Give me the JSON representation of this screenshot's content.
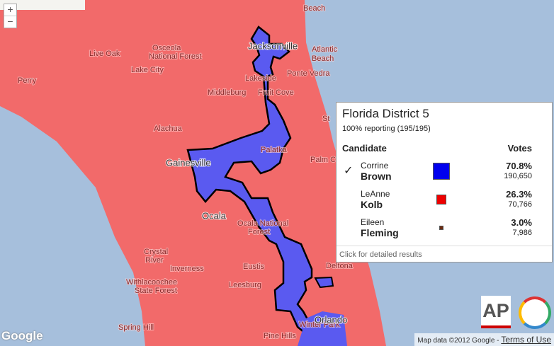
{
  "map": {
    "labels": [
      "Beach",
      "Atlantic",
      "Beach",
      "Jacksonville",
      "Live Oak",
      "Osceola",
      "National Forest",
      "Lake City",
      "Perry",
      "Ponte Vedra",
      "Lakeside",
      "Middleburg",
      "Fruit Cove",
      "St",
      "Alachua",
      "Palatka",
      "Gainesville",
      "Palm C",
      "Ocala",
      "Ocala National",
      "Forest",
      "Crystal",
      "River",
      "Inverness",
      "Withlacoochee",
      "State Forest",
      "Eustis",
      "Deltona",
      "Leesburg",
      "Winter Park",
      "Spring Hill",
      "Pine Hills",
      "Orlando"
    ],
    "zoom_in": "+",
    "zoom_out": "−",
    "logo": "Google",
    "attribution": "Map data ©2012 Google -",
    "terms": "Terms of Use",
    "ap": "AP"
  },
  "popup": {
    "title": "Florida District 5",
    "reporting": "100% reporting (195/195)",
    "candidate_header": "Candidate",
    "votes_header": "Votes",
    "candidates": [
      {
        "winner": "✓",
        "first": "Corrine",
        "last": "Brown",
        "percent": 70.8,
        "percent_label": "70.8%",
        "votes": 190650,
        "votes_label": "190,650",
        "color": "#0000ee"
      },
      {
        "first": "LeAnne",
        "last": "Kolb",
        "percent": 26.3,
        "percent_label": "26.3%",
        "votes": 70766,
        "votes_label": "70,766",
        "color": "#ee0000"
      },
      {
        "first": "Eileen",
        "last": "Fleming",
        "percent": 3.0,
        "percent_label": "3.0%",
        "votes": 7986,
        "votes_label": "7,986",
        "color": "#6b2a10"
      }
    ],
    "footer": "Click for detailed results"
  }
}
